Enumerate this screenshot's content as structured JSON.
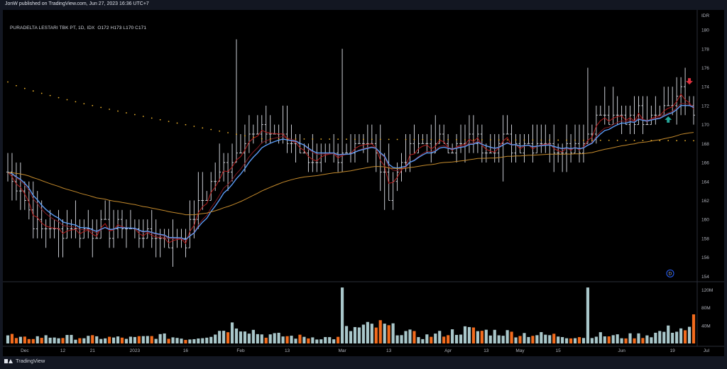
{
  "publisher": "JonW published on TradingView.com, Jun 27, 2023 16:36 UTC+7",
  "legend": {
    "symbol": "PURADELTA LESTARI TBK PT, 1D, IDX",
    "o_label": "O",
    "o_value": "172",
    "h_label": "H",
    "h_value": "173",
    "l_label": "L",
    "l_value": "170",
    "c_label": "C",
    "c_value": "171"
  },
  "currency": "IDR",
  "footer": {
    "brand": "TradingView"
  },
  "colors": {
    "background": "#000000",
    "bar": "#e0e3eb",
    "ema_fast": "#b71c1c",
    "ema_slow": "#801922",
    "ma_blue": "#5b9cf6",
    "ma_orange": "#c48a2c",
    "dots": "#f0b42c",
    "vol_up": "#a9c7ca",
    "vol_down": "#f26b1d",
    "up_arrow": "#26a69a",
    "down_arrow": "#e0313f"
  },
  "chart_data": {
    "type": "ohlc",
    "price_axis": {
      "ylim": [
        153.5,
        181.5
      ],
      "ticks": [
        154,
        156,
        158,
        160,
        162,
        164,
        166,
        168,
        170,
        172,
        174,
        176,
        178,
        180
      ]
    },
    "volume_axis": {
      "ylim": [
        0,
        130
      ],
      "ticks_labels": [
        "40M",
        "80M",
        "120M"
      ],
      "tick_values": [
        40,
        80,
        120
      ]
    },
    "x_labels": [
      "Dec",
      "12",
      "21",
      "2023",
      "16",
      "Feb",
      "13",
      "Mar",
      "13",
      "Apr",
      "13",
      "May",
      "15",
      "Jun",
      "19",
      "Jul"
    ],
    "x_label_positions_bars": [
      4,
      13,
      20,
      30,
      42,
      55,
      66,
      79,
      90,
      104,
      113,
      121,
      130,
      145,
      157,
      165
    ],
    "n_bars": 163,
    "start_close": 165.0,
    "keyframes": [
      [
        0,
        165
      ],
      [
        3,
        163
      ],
      [
        7,
        159
      ],
      [
        12,
        159
      ],
      [
        20,
        159
      ],
      [
        28,
        159
      ],
      [
        36,
        158
      ],
      [
        42,
        158
      ],
      [
        46,
        162
      ],
      [
        50,
        165
      ],
      [
        54,
        167
      ],
      [
        57,
        169
      ],
      [
        62,
        169
      ],
      [
        68,
        168
      ],
      [
        72,
        166
      ],
      [
        78,
        166
      ],
      [
        82,
        168
      ],
      [
        86,
        168
      ],
      [
        90,
        163
      ],
      [
        93,
        166
      ],
      [
        98,
        168
      ],
      [
        104,
        168
      ],
      [
        110,
        168
      ],
      [
        114,
        168
      ],
      [
        118,
        168
      ],
      [
        124,
        168
      ],
      [
        130,
        168
      ],
      [
        136,
        168
      ],
      [
        139,
        171
      ],
      [
        143,
        170
      ],
      [
        147,
        171
      ],
      [
        151,
        171
      ],
      [
        155,
        172
      ],
      [
        159,
        173
      ],
      [
        162,
        171
      ]
    ],
    "volume_keyframes": [
      [
        0,
        15
      ],
      [
        1,
        20
      ],
      [
        2,
        10
      ],
      [
        8,
        15
      ],
      [
        30,
        12
      ],
      [
        36,
        17
      ],
      [
        43,
        10
      ],
      [
        48,
        20
      ],
      [
        54,
        45
      ],
      [
        60,
        20
      ],
      [
        68,
        15
      ],
      [
        78,
        12
      ],
      [
        79,
        125
      ],
      [
        80,
        30
      ],
      [
        88,
        40
      ],
      [
        98,
        15
      ],
      [
        108,
        30
      ],
      [
        116,
        25
      ],
      [
        124,
        20
      ],
      [
        136,
        15
      ],
      [
        137,
        125
      ],
      [
        138,
        20
      ],
      [
        145,
        15
      ],
      [
        152,
        20
      ],
      [
        158,
        35
      ],
      [
        161,
        30
      ],
      [
        162,
        65
      ]
    ],
    "series": [
      {
        "name": "EMA fast",
        "color_key": "ema_fast",
        "period": 3
      },
      {
        "name": "EMA slow",
        "color_key": "ema_slow",
        "period": 8
      },
      {
        "name": "MA",
        "color_key": "ma_blue",
        "period": 10
      },
      {
        "name": "MA long",
        "color_key": "ma_orange",
        "period": 55
      }
    ],
    "dotted_line": {
      "start": 174.5,
      "end": 168.3,
      "bend_bar": 60,
      "bend_value": 168.5
    },
    "last_price": 171,
    "signals": [
      {
        "type": "up",
        "bar": 156,
        "price": 170.5
      },
      {
        "type": "down",
        "bar": 161,
        "price": 174.6
      }
    ],
    "highlighted_volume_bars": [
      79,
      137
    ]
  }
}
